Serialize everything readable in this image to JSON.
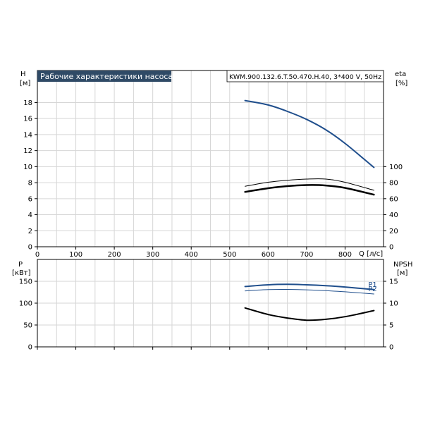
{
  "title": "Рабочие характеристики насоса",
  "model": "KWM.900.132.6.T.50.470.H.40, 3*400 V, 50Hz",
  "chart_data": [
    {
      "type": "line",
      "panel": "top",
      "xlabel": "Q [л/с]",
      "x_ticks": [
        0,
        100,
        200,
        300,
        400,
        500,
        600,
        700,
        800
      ],
      "xlim": [
        0,
        900
      ],
      "y_left_label": "H",
      "y_left_unit": "[м]",
      "y_left_ticks": [
        0,
        2,
        4,
        6,
        8,
        10,
        12,
        14,
        16,
        18
      ],
      "y_left_lim": [
        0,
        22
      ],
      "y_right_label": "eta",
      "y_right_unit": "[%]",
      "y_right_ticks": [
        0,
        20,
        40,
        60,
        80,
        100
      ],
      "y_right_lim": [
        0,
        220
      ],
      "grid": true,
      "series": [
        {
          "key": "H",
          "axis": "left",
          "color": "#1f4e8c",
          "width": 2,
          "x": [
            540,
            600,
            650,
            700,
            750,
            800,
            875
          ],
          "y": [
            18.25,
            17.7,
            16.9,
            15.9,
            14.6,
            12.9,
            9.9
          ]
        },
        {
          "key": "eta_upper",
          "axis": "right",
          "color": "#000000",
          "width": 1,
          "x": [
            540,
            600,
            650,
            700,
            750,
            800,
            875
          ],
          "y": [
            75.5,
            80.5,
            83,
            84.5,
            84.5,
            80.5,
            70.5
          ]
        },
        {
          "key": "eta_lower",
          "axis": "right",
          "color": "#000000",
          "width": 2.5,
          "x": [
            540,
            600,
            650,
            700,
            750,
            800,
            875
          ],
          "y": [
            68.5,
            73,
            75.7,
            77,
            76.5,
            73.5,
            65
          ]
        }
      ]
    },
    {
      "type": "line",
      "panel": "bottom",
      "xlim": [
        0,
        900
      ],
      "x_ticks": [
        0,
        100,
        200,
        300,
        400,
        500,
        600,
        700,
        800
      ],
      "y_left_label": "P",
      "y_left_unit": "[кВт]",
      "y_left_ticks": [
        0,
        50,
        100,
        150
      ],
      "y_left_lim": [
        0,
        200
      ],
      "y_right_label": "NPSH",
      "y_right_unit": "[м]",
      "y_right_ticks": [
        0,
        5,
        10,
        15
      ],
      "y_right_lim": [
        0,
        20
      ],
      "grid": true,
      "series": [
        {
          "name": "P1",
          "axis": "left",
          "color": "#1f4e8c",
          "width": 2,
          "x": [
            540,
            600,
            650,
            700,
            750,
            800,
            875
          ],
          "y": [
            138,
            142,
            143,
            142,
            140,
            137,
            131
          ]
        },
        {
          "name": "P2",
          "axis": "left",
          "color": "#1f4e8c",
          "width": 1,
          "x": [
            540,
            600,
            650,
            700,
            750,
            800,
            875
          ],
          "y": [
            128,
            131,
            131.5,
            130.5,
            128.5,
            126,
            121
          ]
        },
        {
          "key": "NPSH",
          "axis": "right",
          "color": "#000000",
          "width": 2,
          "x": [
            540,
            600,
            650,
            700,
            750,
            800,
            875
          ],
          "y": [
            8.9,
            7.4,
            6.6,
            6.1,
            6.3,
            6.9,
            8.3
          ]
        }
      ]
    }
  ]
}
